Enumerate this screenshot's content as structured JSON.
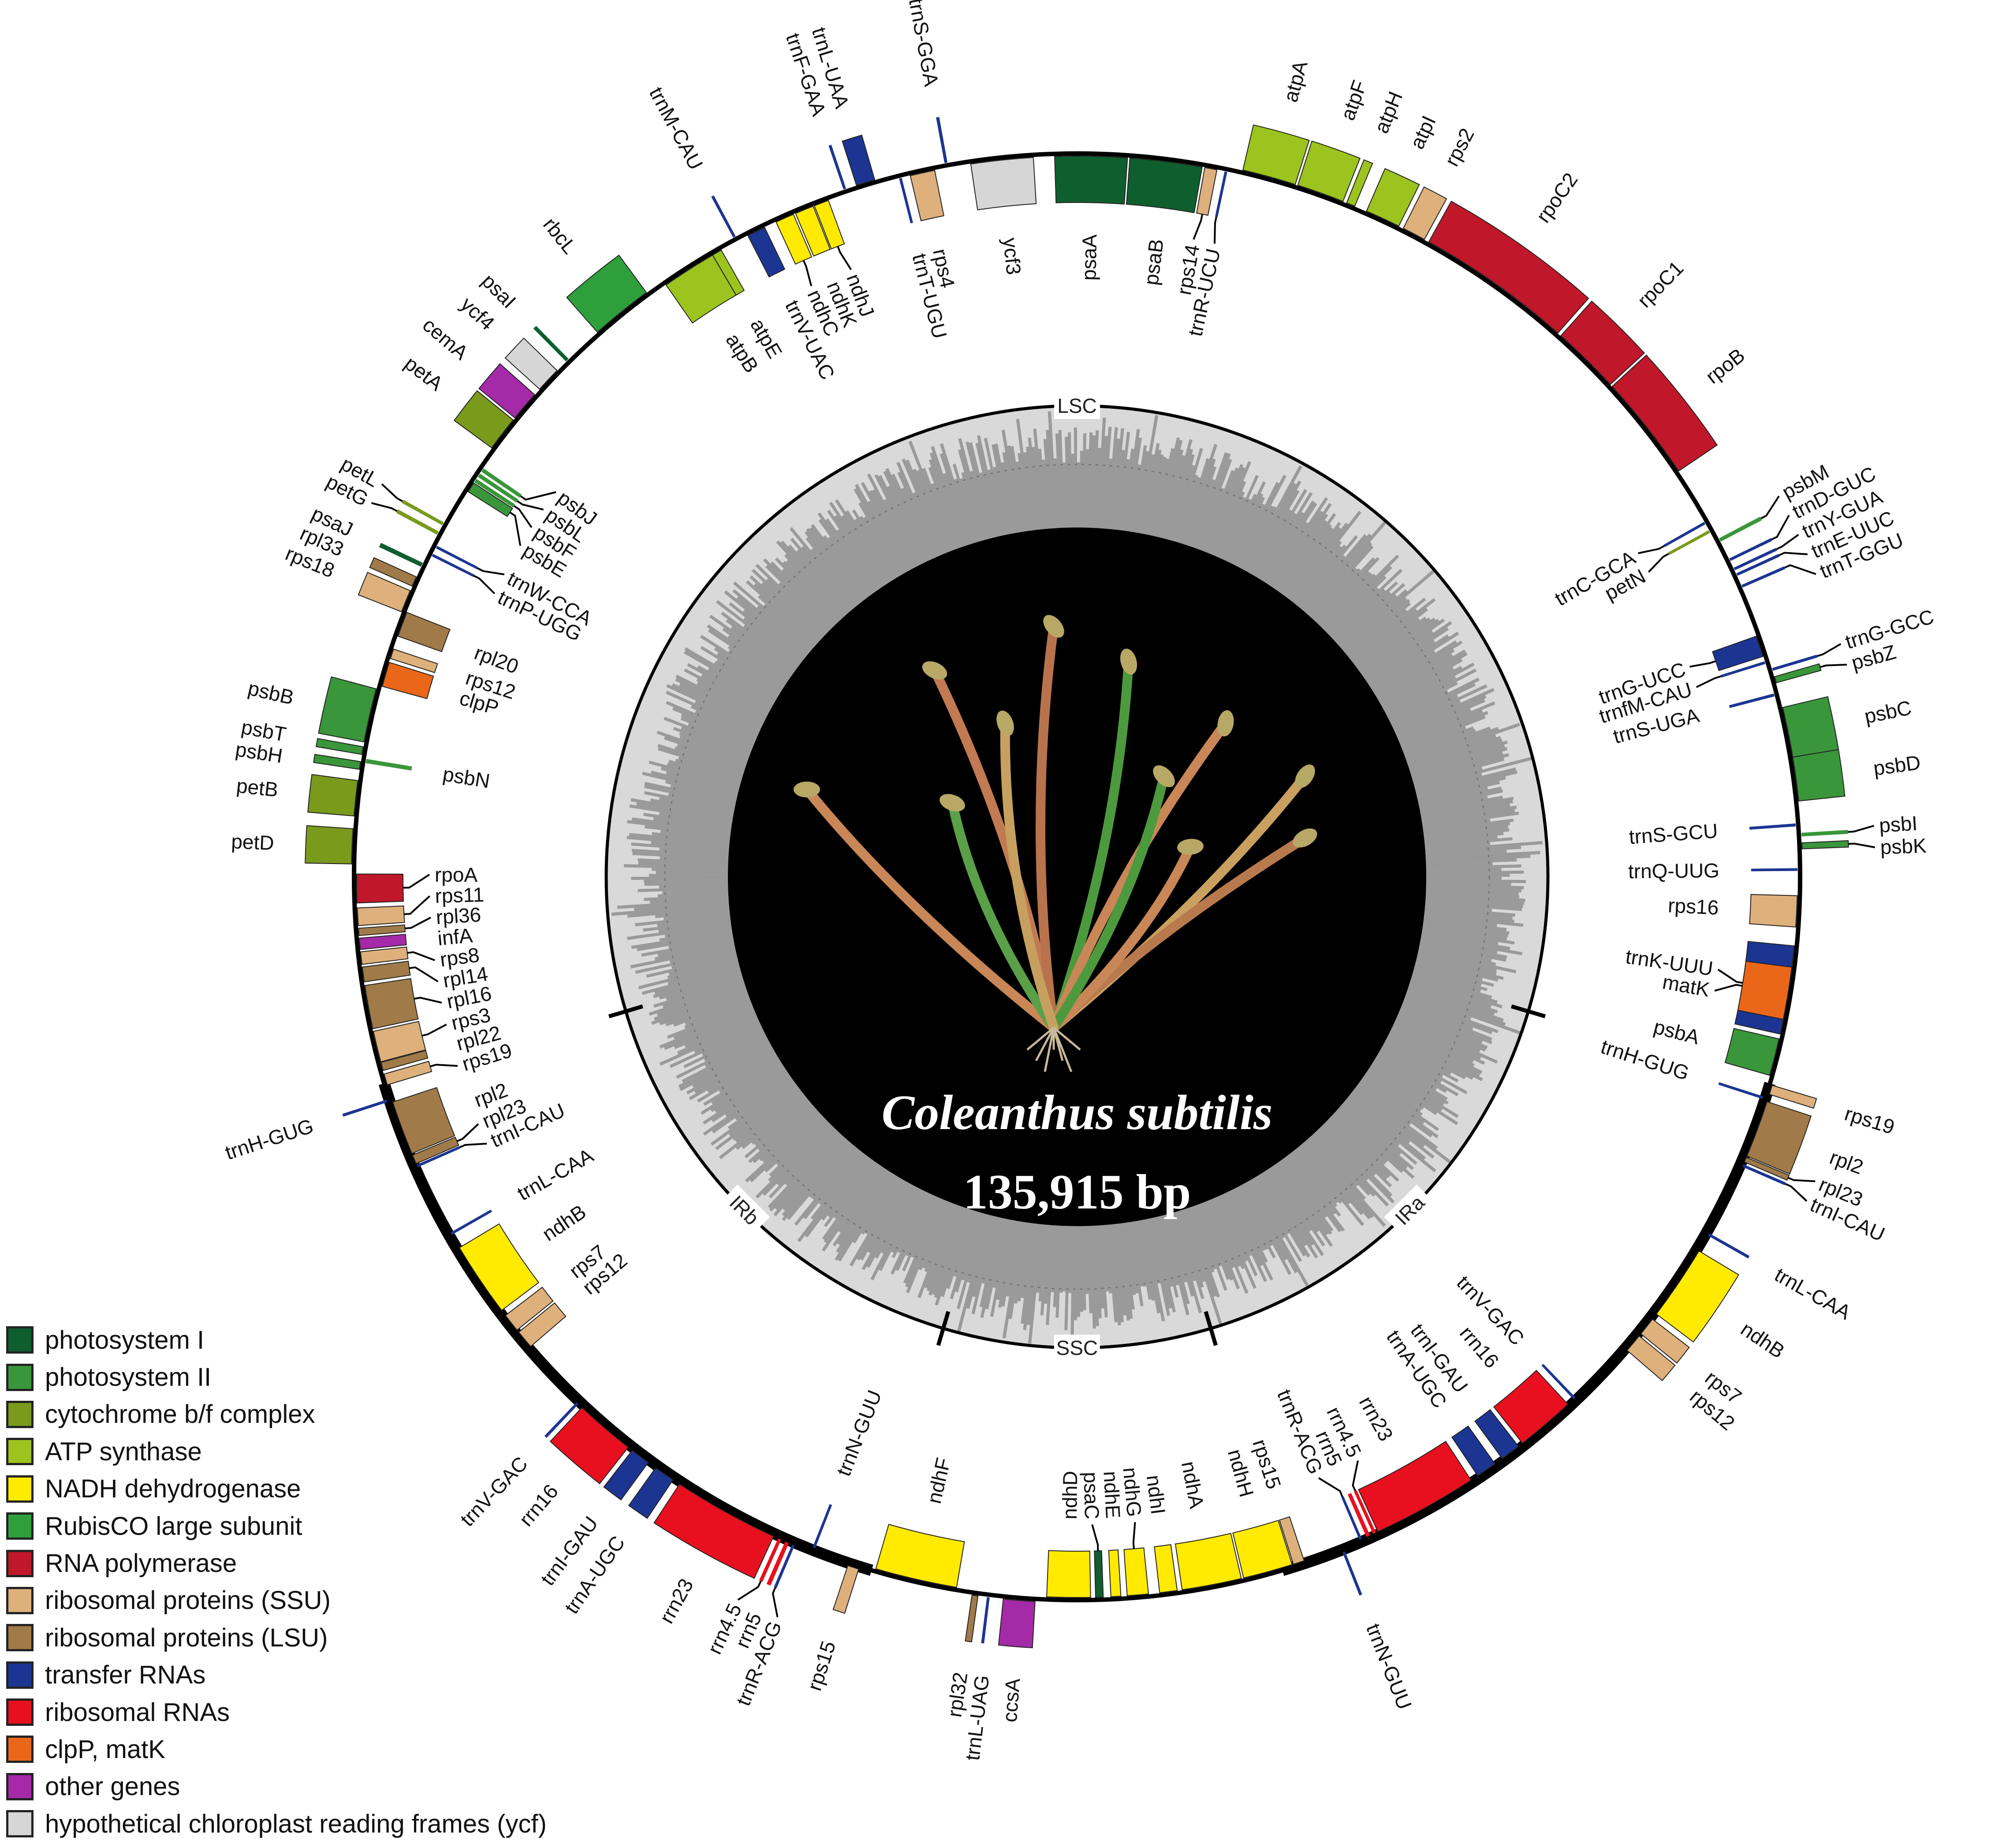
{
  "title": {
    "species": "Coleanthus subtilis",
    "size_label": "135,915 bp"
  },
  "genome": {
    "length_bp": 135915,
    "regions": [
      {
        "name": "LSC",
        "start": 1,
        "end": 80490
      },
      {
        "name": "IRb",
        "start": 80491,
        "end": 101970
      },
      {
        "name": "SSC",
        "start": 101971,
        "end": 114430
      },
      {
        "name": "IRa",
        "start": 114431,
        "end": 135915
      }
    ],
    "strand_note_outer": "+",
    "genes": [
      {
        "name": "psbA",
        "cat": "psII",
        "start": 230,
        "end": 1360,
        "strand": "-"
      },
      {
        "name": "trnK-UUU",
        "cat": "trn",
        "start": 1510,
        "end": 4190,
        "strand": "-"
      },
      {
        "name": "matK",
        "cat": "clp",
        "start": 1960,
        "end": 3550,
        "strand": "-"
      },
      {
        "name": "rps16",
        "cat": "rps",
        "start": 4760,
        "end": 5700,
        "strand": "-"
      },
      {
        "name": "trnQ-UUG",
        "cat": "trn",
        "start": 6450,
        "end": 6520,
        "strand": "-"
      },
      {
        "name": "psbK",
        "cat": "psII",
        "start": 7100,
        "end": 7280,
        "strand": "+"
      },
      {
        "name": "psbI",
        "cat": "psII",
        "start": 7470,
        "end": 7580,
        "strand": "+"
      },
      {
        "name": "trnS-GCU",
        "cat": "trn",
        "start": 7780,
        "end": 7870,
        "strand": "-"
      },
      {
        "name": "psbD",
        "cat": "psII",
        "start": 8530,
        "end": 9850,
        "strand": "+"
      },
      {
        "name": "psbC",
        "cat": "psII",
        "start": 9850,
        "end": 11360,
        "strand": "+"
      },
      {
        "name": "trnS-UGA",
        "cat": "trn",
        "start": 11740,
        "end": 11830,
        "strand": "-"
      },
      {
        "name": "psbZ",
        "cat": "psII",
        "start": 12120,
        "end": 12310,
        "strand": "+"
      },
      {
        "name": "trnG-GCC",
        "cat": "trn",
        "start": 12500,
        "end": 12570,
        "strand": "+"
      },
      {
        "name": "trnfM-CAU",
        "cat": "trn",
        "start": 12760,
        "end": 12830,
        "strand": "-"
      },
      {
        "name": "trnG-UCC",
        "cat": "trn",
        "start": 12990,
        "end": 13630,
        "strand": "-"
      },
      {
        "name": "trnT-GGU",
        "cat": "trn",
        "start": 15140,
        "end": 15210,
        "strand": "+"
      },
      {
        "name": "trnE-UUC",
        "cat": "trn",
        "start": 15520,
        "end": 15590,
        "strand": "+"
      },
      {
        "name": "trnY-GUA",
        "cat": "trn",
        "start": 15700,
        "end": 15780,
        "strand": "+"
      },
      {
        "name": "trnD-GUC",
        "cat": "trn",
        "start": 16010,
        "end": 16080,
        "strand": "+"
      },
      {
        "name": "psbM",
        "cat": "psII",
        "start": 16650,
        "end": 16760,
        "strand": "+"
      },
      {
        "name": "petN",
        "cat": "cyt",
        "start": 17030,
        "end": 17120,
        "strand": "-"
      },
      {
        "name": "trnC-GCA",
        "cat": "trn",
        "start": 17330,
        "end": 17400,
        "strand": "-"
      },
      {
        "name": "rpoB",
        "cat": "rpo",
        "start": 19100,
        "end": 22310,
        "strand": "+"
      },
      {
        "name": "rpoC1",
        "cat": "rpo",
        "start": 22390,
        "end": 24460,
        "strand": "+"
      },
      {
        "name": "rpoC2",
        "cat": "rpo",
        "start": 24580,
        "end": 29300,
        "strand": "+"
      },
      {
        "name": "rps2",
        "cat": "rps",
        "start": 29450,
        "end": 30160,
        "strand": "+"
      },
      {
        "name": "atpI",
        "cat": "atp",
        "start": 30310,
        "end": 31370,
        "strand": "+"
      },
      {
        "name": "atpH",
        "cat": "atp",
        "start": 31750,
        "end": 32010,
        "strand": "+"
      },
      {
        "name": "atpF",
        "cat": "atp",
        "start": 32130,
        "end": 33560,
        "strand": "+"
      },
      {
        "name": "atpA",
        "cat": "atp",
        "start": 33640,
        "end": 35260,
        "strand": "+"
      },
      {
        "name": "trnR-UCU",
        "cat": "trn",
        "start": 35710,
        "end": 35780,
        "strand": "-"
      },
      {
        "name": "rps14",
        "cat": "rps",
        "start": 36020,
        "end": 36390,
        "strand": "-"
      },
      {
        "name": "psaB",
        "cat": "psI",
        "start": 36470,
        "end": 38660,
        "strand": "-"
      },
      {
        "name": "psaA",
        "cat": "psI",
        "start": 38730,
        "end": 40920,
        "strand": "-"
      },
      {
        "name": "ycf3",
        "cat": "ycf",
        "start": 41560,
        "end": 43450,
        "strand": "-"
      },
      {
        "name": "trnS-GGA",
        "cat": "trn",
        "start": 44130,
        "end": 44220,
        "strand": "+"
      },
      {
        "name": "rps4",
        "cat": "rps",
        "start": 44550,
        "end": 45300,
        "strand": "-"
      },
      {
        "name": "trnT-UGU",
        "cat": "trn",
        "start": 45570,
        "end": 45640,
        "strand": "-"
      },
      {
        "name": "trnL-UAA",
        "cat": "trn",
        "start": 46360,
        "end": 46930,
        "strand": "+"
      },
      {
        "name": "trnF-GAA",
        "cat": "trn",
        "start": 47260,
        "end": 47330,
        "strand": "+"
      },
      {
        "name": "ndhJ",
        "cat": "ndh",
        "start": 47870,
        "end": 48320,
        "strand": "-"
      },
      {
        "name": "ndhK",
        "cat": "ndh",
        "start": 48360,
        "end": 48930,
        "strand": "-"
      },
      {
        "name": "ndhC",
        "cat": "ndh",
        "start": 49000,
        "end": 49570,
        "strand": "-"
      },
      {
        "name": "trnV-UAC",
        "cat": "trn",
        "start": 49950,
        "end": 50510,
        "strand": "-"
      },
      {
        "name": "trnM-CAU",
        "cat": "trn",
        "start": 50850,
        "end": 50920,
        "strand": "+"
      },
      {
        "name": "atpE",
        "cat": "atp",
        "start": 51420,
        "end": 51720,
        "strand": "-"
      },
      {
        "name": "atpB",
        "cat": "atp",
        "start": 51720,
        "end": 53380,
        "strand": "-"
      },
      {
        "name": "rbcL",
        "cat": "rbc",
        "start": 53990,
        "end": 55870,
        "strand": "+"
      },
      {
        "name": "psaI",
        "cat": "psI",
        "start": 57040,
        "end": 57150,
        "strand": "+"
      },
      {
        "name": "ycf4",
        "cat": "ycf",
        "start": 57530,
        "end": 58290,
        "strand": "+"
      },
      {
        "name": "cemA",
        "cat": "other",
        "start": 58510,
        "end": 59420,
        "strand": "+"
      },
      {
        "name": "petA",
        "cat": "cyt",
        "start": 59500,
        "end": 60550,
        "strand": "+"
      },
      {
        "name": "psbJ",
        "cat": "psII",
        "start": 61190,
        "end": 61310,
        "strand": "-"
      },
      {
        "name": "psbL",
        "cat": "psII",
        "start": 61380,
        "end": 61500,
        "strand": "-"
      },
      {
        "name": "psbF",
        "cat": "psII",
        "start": 61570,
        "end": 61690,
        "strand": "-"
      },
      {
        "name": "psbE",
        "cat": "psII",
        "start": 61720,
        "end": 62030,
        "strand": "-"
      },
      {
        "name": "petL",
        "cat": "cyt",
        "start": 63190,
        "end": 63290,
        "strand": "+"
      },
      {
        "name": "petG",
        "cat": "cyt",
        "start": 63500,
        "end": 63610,
        "strand": "+"
      },
      {
        "name": "trnW-CCA",
        "cat": "trn",
        "start": 63910,
        "end": 63980,
        "strand": "-"
      },
      {
        "name": "trnP-UGG",
        "cat": "trn",
        "start": 64180,
        "end": 64250,
        "strand": "-"
      },
      {
        "name": "psaJ",
        "cat": "psI",
        "start": 64550,
        "end": 64680,
        "strand": "+"
      },
      {
        "name": "rpl33",
        "cat": "rpl",
        "start": 65010,
        "end": 65310,
        "strand": "+"
      },
      {
        "name": "rps18",
        "cat": "rps",
        "start": 65460,
        "end": 66140,
        "strand": "+"
      },
      {
        "name": "rpl20",
        "cat": "rpl",
        "start": 66100,
        "end": 66860,
        "strand": "-"
      },
      {
        "name": "rps12",
        "cat": "rps",
        "start": 67270,
        "end": 67570,
        "strand": "-"
      },
      {
        "name": "clpP",
        "cat": "clp",
        "start": 67690,
        "end": 68440,
        "strand": "-"
      },
      {
        "name": "psbB",
        "cat": "psII",
        "start": 68560,
        "end": 70180,
        "strand": "+"
      },
      {
        "name": "psbT",
        "cat": "psII",
        "start": 70330,
        "end": 70560,
        "strand": "+"
      },
      {
        "name": "psbN",
        "cat": "psII",
        "start": 70670,
        "end": 70800,
        "strand": "-"
      },
      {
        "name": "psbH",
        "cat": "psII",
        "start": 70780,
        "end": 71010,
        "strand": "+"
      },
      {
        "name": "petB",
        "cat": "cyt",
        "start": 71350,
        "end": 72410,
        "strand": "+"
      },
      {
        "name": "petD",
        "cat": "cyt",
        "start": 72790,
        "end": 73840,
        "strand": "+"
      },
      {
        "name": "rpoA",
        "cat": "rpo",
        "start": 74140,
        "end": 75010,
        "strand": "-"
      },
      {
        "name": "rps11",
        "cat": "rps",
        "start": 75160,
        "end": 75690,
        "strand": "-"
      },
      {
        "name": "rpl36",
        "cat": "rpl",
        "start": 75770,
        "end": 75990,
        "strand": "-"
      },
      {
        "name": "infA",
        "cat": "other",
        "start": 76070,
        "end": 76410,
        "strand": "-"
      },
      {
        "name": "rps8",
        "cat": "rps",
        "start": 76480,
        "end": 76860,
        "strand": "-"
      },
      {
        "name": "rpl14",
        "cat": "rpl",
        "start": 76940,
        "end": 77390,
        "strand": "-"
      },
      {
        "name": "rpl16",
        "cat": "rpl",
        "start": 77500,
        "end": 78820,
        "strand": "-"
      },
      {
        "name": "rps3",
        "cat": "rps",
        "start": 78900,
        "end": 79840,
        "strand": "-"
      },
      {
        "name": "rpl22",
        "cat": "rpl",
        "start": 79860,
        "end": 80110,
        "strand": "-"
      },
      {
        "name": "rps19",
        "cat": "rps",
        "start": 80220,
        "end": 80560,
        "strand": "-"
      },
      {
        "name": "trnH-GUG",
        "cat": "trn",
        "start": 80980,
        "end": 81050,
        "strand": "+"
      },
      {
        "name": "rpl2",
        "cat": "rpl",
        "start": 81100,
        "end": 82750,
        "strand": "-"
      },
      {
        "name": "rpl23",
        "cat": "rpl",
        "start": 82800,
        "end": 83080,
        "strand": "-"
      },
      {
        "name": "trnI-CAU",
        "cat": "trn",
        "start": 83120,
        "end": 83190,
        "strand": "-"
      },
      {
        "name": "trnL-CAA",
        "cat": "trn",
        "start": 85390,
        "end": 85470,
        "strand": "-"
      },
      {
        "name": "ndhB",
        "cat": "ndh",
        "start": 85920,
        "end": 88190,
        "strand": "-"
      },
      {
        "name": "rps7",
        "cat": "rps",
        "start": 88380,
        "end": 88940,
        "strand": "-"
      },
      {
        "name": "rps12",
        "cat": "rps",
        "start": 89020,
        "end": 89580,
        "strand": "-"
      },
      {
        "name": "trnV-GAC",
        "cat": "trn",
        "start": 91740,
        "end": 91810,
        "strand": "+"
      },
      {
        "name": "rrn16",
        "cat": "rrn",
        "start": 91960,
        "end": 93780,
        "strand": "+"
      },
      {
        "name": "trnI-GAU",
        "cat": "trn",
        "start": 93930,
        "end": 94530,
        "strand": "+"
      },
      {
        "name": "trnA-UGC",
        "cat": "trn",
        "start": 94800,
        "end": 95430,
        "strand": "+"
      },
      {
        "name": "rrn23",
        "cat": "rrn",
        "start": 95660,
        "end": 98870,
        "strand": "+"
      },
      {
        "name": "rrn4.5",
        "cat": "rrn",
        "start": 99020,
        "end": 99120,
        "strand": "+"
      },
      {
        "name": "rrn5",
        "cat": "rrn",
        "start": 99250,
        "end": 99370,
        "strand": "+"
      },
      {
        "name": "trnR-ACG",
        "cat": "trn",
        "start": 99480,
        "end": 99550,
        "strand": "+"
      },
      {
        "name": "trnN-GUU",
        "cat": "trn",
        "start": 100080,
        "end": 100150,
        "strand": "-"
      },
      {
        "name": "rps15",
        "cat": "rps",
        "start": 101250,
        "end": 101590,
        "strand": "+"
      },
      {
        "name": "ndhF",
        "cat": "ndh",
        "start": 102080,
        "end": 104570,
        "strand": "-"
      },
      {
        "name": "rpl32",
        "cat": "rpl",
        "start": 105060,
        "end": 105240,
        "strand": "+"
      },
      {
        "name": "trnL-UAG",
        "cat": "trn",
        "start": 105510,
        "end": 105590,
        "strand": "+"
      },
      {
        "name": "ccsA",
        "cat": "other",
        "start": 106000,
        "end": 106950,
        "strand": "+"
      },
      {
        "name": "ndhD",
        "cat": "ndh",
        "start": 107290,
        "end": 108610,
        "strand": "-"
      },
      {
        "name": "psaC",
        "cat": "psI",
        "start": 108760,
        "end": 108990,
        "strand": "-"
      },
      {
        "name": "ndhE",
        "cat": "ndh",
        "start": 109220,
        "end": 109520,
        "strand": "-"
      },
      {
        "name": "ndhG",
        "cat": "ndh",
        "start": 109710,
        "end": 110350,
        "strand": "-"
      },
      {
        "name": "ndhI",
        "cat": "ndh",
        "start": 110690,
        "end": 111220,
        "strand": "-"
      },
      {
        "name": "ndhA",
        "cat": "ndh",
        "start": 111370,
        "end": 113180,
        "strand": "-"
      },
      {
        "name": "ndhH",
        "cat": "ndh",
        "start": 113250,
        "end": 114760,
        "strand": "-"
      },
      {
        "name": "rps15",
        "cat": "rps",
        "start": 114800,
        "end": 115140,
        "strand": "-"
      },
      {
        "name": "trnN-GUU",
        "cat": "trn",
        "start": 116310,
        "end": 116380,
        "strand": "+"
      },
      {
        "name": "trnR-ACG",
        "cat": "trn",
        "start": 116920,
        "end": 116990,
        "strand": "-"
      },
      {
        "name": "rrn5",
        "cat": "rrn",
        "start": 117140,
        "end": 117260,
        "strand": "-"
      },
      {
        "name": "rrn4.5",
        "cat": "rrn",
        "start": 117360,
        "end": 117460,
        "strand": "-"
      },
      {
        "name": "rrn23",
        "cat": "rrn",
        "start": 117520,
        "end": 120720,
        "strand": "-"
      },
      {
        "name": "trnA-UGC",
        "cat": "trn",
        "start": 120960,
        "end": 121590,
        "strand": "-"
      },
      {
        "name": "trnI-GAU",
        "cat": "trn",
        "start": 121860,
        "end": 122470,
        "strand": "-"
      },
      {
        "name": "rrn16",
        "cat": "rrn",
        "start": 122620,
        "end": 124420,
        "strand": "-"
      },
      {
        "name": "trnV-GAC",
        "cat": "trn",
        "start": 124650,
        "end": 124720,
        "strand": "-"
      },
      {
        "name": "rps12",
        "cat": "rps",
        "start": 126810,
        "end": 127370,
        "strand": "+"
      },
      {
        "name": "rps7",
        "cat": "rps",
        "start": 127450,
        "end": 128010,
        "strand": "+"
      },
      {
        "name": "ndhB",
        "cat": "ndh",
        "start": 128200,
        "end": 130470,
        "strand": "+"
      },
      {
        "name": "trnL-CAA",
        "cat": "trn",
        "start": 131000,
        "end": 131080,
        "strand": "+"
      },
      {
        "name": "trnI-CAU",
        "cat": "trn",
        "start": 133300,
        "end": 133370,
        "strand": "+"
      },
      {
        "name": "rpl23",
        "cat": "rpl",
        "start": 133450,
        "end": 133600,
        "strand": "+"
      },
      {
        "name": "rpl2",
        "cat": "rpl",
        "start": 133640,
        "end": 135370,
        "strand": "+"
      },
      {
        "name": "trnH-GUG",
        "cat": "trn",
        "start": 135410,
        "end": 135480,
        "strand": "-"
      },
      {
        "name": "rps19",
        "cat": "rps",
        "start": 135600,
        "end": 135880,
        "strand": "+"
      }
    ]
  },
  "legend": [
    {
      "key": "psI",
      "label": "photosystem I",
      "color": "#0f5f2e"
    },
    {
      "key": "psII",
      "label": "photosystem II",
      "color": "#3a963a"
    },
    {
      "key": "cyt",
      "label": "cytochrome b/f complex",
      "color": "#7a9a1c"
    },
    {
      "key": "atp",
      "label": "ATP synthase",
      "color": "#9cc31e"
    },
    {
      "key": "ndh",
      "label": "NADH dehydrogenase",
      "color": "#ffea00"
    },
    {
      "key": "rbc",
      "label": "RubisCO large subunit",
      "color": "#2f9f3c"
    },
    {
      "key": "rpo",
      "label": "RNA polymerase",
      "color": "#c0172a"
    },
    {
      "key": "rps",
      "label": "ribosomal proteins (SSU)",
      "color": "#ddb07c"
    },
    {
      "key": "rpl",
      "label": "ribosomal proteins (LSU)",
      "color": "#a07a48"
    },
    {
      "key": "trn",
      "label": "transfer RNAs",
      "color": "#1c3592"
    },
    {
      "key": "rrn",
      "label": "ribosomal RNAs",
      "color": "#e8101e"
    },
    {
      "key": "clp",
      "label": "clpP, matK",
      "color": "#ea671a"
    },
    {
      "key": "other",
      "label": "other genes",
      "color": "#a42aa8"
    },
    {
      "key": "ycf",
      "label": "hypothetical chloroplast reading frames (ycf)",
      "color": "#d6d6d6"
    }
  ]
}
